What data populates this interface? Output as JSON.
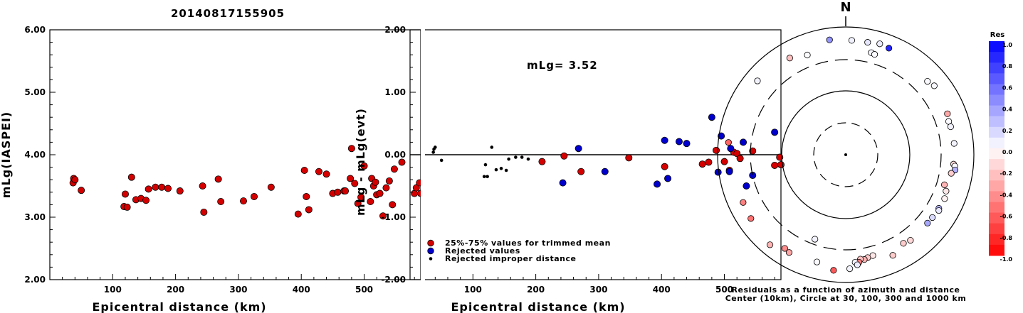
{
  "title": "20140817155905",
  "chart_data": [
    {
      "type": "scatter",
      "xlabel": "Epicentral distance (km)",
      "ylabel": "mLg(IASPEI)",
      "xlim": [
        0,
        590
      ],
      "ylim": [
        2.0,
        6.0
      ],
      "xticks": [
        "100",
        "200",
        "300",
        "400",
        "500"
      ],
      "yticks": [
        "2.00",
        "3.00",
        "4.00",
        "5.00",
        "6.00"
      ],
      "series": [
        {
          "color": "#d40000",
          "x": [
            37,
            38,
            40,
            50,
            118,
            120,
            123,
            130,
            137,
            145,
            153,
            157,
            168,
            178,
            188,
            207,
            243,
            245,
            268,
            272,
            308,
            325,
            352,
            395,
            405,
            408,
            412,
            428,
            440,
            450,
            458,
            468,
            470,
            478,
            480,
            485,
            490,
            495,
            500,
            510,
            512,
            515,
            518,
            520,
            525,
            530,
            535,
            540,
            545,
            548,
            560,
            580,
            583,
            588,
            590
          ],
          "y": [
            3.55,
            3.62,
            3.6,
            3.43,
            3.17,
            3.37,
            3.16,
            3.64,
            3.28,
            3.3,
            3.27,
            3.45,
            3.48,
            3.48,
            3.46,
            3.42,
            3.5,
            3.08,
            3.61,
            3.25,
            3.26,
            3.33,
            3.48,
            3.05,
            3.75,
            3.33,
            3.12,
            3.73,
            3.69,
            3.38,
            3.4,
            3.42,
            3.42,
            3.62,
            4.1,
            3.54,
            3.22,
            3.32,
            3.82,
            3.25,
            3.62,
            3.5,
            3.56,
            3.36,
            3.38,
            3.02,
            3.47,
            3.58,
            3.2,
            3.77,
            3.88,
            3.38,
            3.47,
            3.55,
            3.38
          ]
        }
      ]
    },
    {
      "type": "scatter",
      "xlabel": "Epicentral distance (km)",
      "ylabel": "mLg - mLg(evt)",
      "annotation": "mLg= 3.52",
      "xlim": [
        0,
        590
      ],
      "ylim": [
        -2.0,
        2.0
      ],
      "xticks": [
        "100",
        "200",
        "300",
        "400",
        "500"
      ],
      "yticks": [
        "-2.00",
        "-1.00",
        "0.00",
        "1.00",
        "2.00"
      ],
      "legend": [
        "25%-75% values for trimmed mean",
        "Rejected values",
        "Rejected improper distance"
      ],
      "series": [
        {
          "name": "25%-75% values for trimmed mean",
          "color": "#d40000",
          "x": [
            210,
            245,
            272,
            348,
            405,
            465,
            475,
            487,
            500,
            508,
            515,
            520,
            525,
            545,
            580,
            588,
            590
          ],
          "y": [
            -0.11,
            -0.02,
            -0.27,
            -0.05,
            -0.19,
            -0.15,
            -0.12,
            0.07,
            -0.11,
            -0.25,
            0.04,
            0.02,
            -0.06,
            0.06,
            -0.17,
            -0.04,
            -0.16
          ]
        },
        {
          "name": "Rejected values",
          "color": "#0000cc",
          "x": [
            243,
            268,
            310,
            393,
            405,
            410,
            428,
            440,
            480,
            490,
            495,
            508,
            510,
            530,
            535,
            545,
            580
          ],
          "y": [
            -0.45,
            0.1,
            -0.27,
            -0.47,
            0.23,
            -0.38,
            0.21,
            0.18,
            0.6,
            -0.28,
            0.3,
            -0.27,
            0.1,
            0.2,
            -0.5,
            -0.33,
            0.36
          ]
        },
        {
          "name": "Rejected improper distance",
          "color": "#000000",
          "x": [
            37,
            38,
            40,
            50,
            118,
            120,
            123,
            130,
            137,
            145,
            153,
            157,
            168,
            178,
            188
          ],
          "y": [
            0.04,
            0.09,
            0.12,
            -0.09,
            -0.35,
            -0.16,
            -0.35,
            0.12,
            -0.24,
            -0.22,
            -0.25,
            -0.07,
            -0.04,
            -0.04,
            -0.07
          ]
        }
      ]
    },
    {
      "type": "scatter",
      "subtype": "polar-map",
      "north_label": "N",
      "caption": [
        "Residuals as a function of azimuth and distance",
        "Center (10km), Circle at 30, 100, 300 and 1000 km"
      ],
      "points": [
        {
          "az": 352,
          "dist": 940,
          "res": 0.42
        },
        {
          "az": 3,
          "dist": 885,
          "res": 0.05
        },
        {
          "az": 11,
          "dist": 885,
          "res": 0.1
        },
        {
          "az": 17,
          "dist": 940,
          "res": 0.08
        },
        {
          "az": 22,
          "dist": 900,
          "res": 0.85
        },
        {
          "az": 14,
          "dist": 610,
          "res": 0.03
        },
        {
          "az": 16,
          "dist": 590,
          "res": 0.02
        },
        {
          "az": 330,
          "dist": 790,
          "res": -0.25
        },
        {
          "az": 339,
          "dist": 650,
          "res": 0.01
        },
        {
          "az": 310,
          "dist": 900,
          "res": 0.05
        },
        {
          "az": 48,
          "dist": 730,
          "res": 0.02
        },
        {
          "az": 52,
          "dist": 800,
          "res": 0.03
        },
        {
          "az": 68,
          "dist": 720,
          "res": -0.35
        },
        {
          "az": 72,
          "dist": 680,
          "res": 0.02
        },
        {
          "az": 75,
          "dist": 690,
          "res": 0.05
        },
        {
          "az": 84,
          "dist": 700,
          "res": 0.05
        },
        {
          "az": 95,
          "dist": 680,
          "res": -0.15
        },
        {
          "az": 96,
          "dist": 720,
          "res": 0.02
        },
        {
          "az": 98,
          "dist": 740,
          "res": 0.3
        },
        {
          "az": 100,
          "dist": 650,
          "res": -0.2
        },
        {
          "az": 107,
          "dist": 555,
          "res": -0.3
        },
        {
          "az": 110,
          "dist": 640,
          "res": -0.1
        },
        {
          "az": 114,
          "dist": 680,
          "res": -0.05
        },
        {
          "az": 120,
          "dist": 660,
          "res": 0.3
        },
        {
          "az": 121,
          "dist": 690,
          "res": 0.1
        },
        {
          "az": 126,
          "dist": 650,
          "res": 0.15
        },
        {
          "az": 130,
          "dist": 640,
          "res": 0.35
        },
        {
          "az": 147,
          "dist": 620,
          "res": -0.2
        },
        {
          "az": 165,
          "dist": 590,
          "res": -0.1
        },
        {
          "az": 168,
          "dist": 610,
          "res": -0.2
        },
        {
          "az": 170,
          "dist": 640,
          "res": -0.3
        },
        {
          "az": 172,
          "dist": 615,
          "res": -0.25
        },
        {
          "az": 173,
          "dist": 690,
          "res": -0.5
        },
        {
          "az": 175,
          "dist": 680,
          "res": 0.05
        },
        {
          "az": 174,
          "dist": 760,
          "res": 0.08
        },
        {
          "az": 178,
          "dist": 870,
          "res": 0.05
        },
        {
          "az": 186,
          "dist": 950,
          "res": -0.65
        },
        {
          "az": 195,
          "dist": 770,
          "res": 0.02
        },
        {
          "az": 210,
          "dist": 830,
          "res": -0.35
        },
        {
          "az": 213,
          "dist": 790,
          "res": -0.45
        },
        {
          "az": 220,
          "dist": 1000,
          "res": -0.3
        },
        {
          "az": 236,
          "dist": 870,
          "res": -0.55
        },
        {
          "az": 245,
          "dist": 830,
          "res": -0.5
        },
        {
          "az": 200,
          "dist": 330,
          "res": 0.05
        },
        {
          "az": 143,
          "dist": 660,
          "res": -0.15
        },
        {
          "az": 155,
          "dist": 770,
          "res": -0.2
        },
        {
          "az": 276,
          "dist": 1000,
          "res": -0.6
        }
      ],
      "colorbar": {
        "label": "Res",
        "ticks": [
          "1.0",
          "0.8",
          "0.6",
          "0.4",
          "0.2",
          "0.0",
          "-0.2",
          "-0.4",
          "-0.6",
          "-0.8",
          "-1.0"
        ]
      }
    }
  ]
}
